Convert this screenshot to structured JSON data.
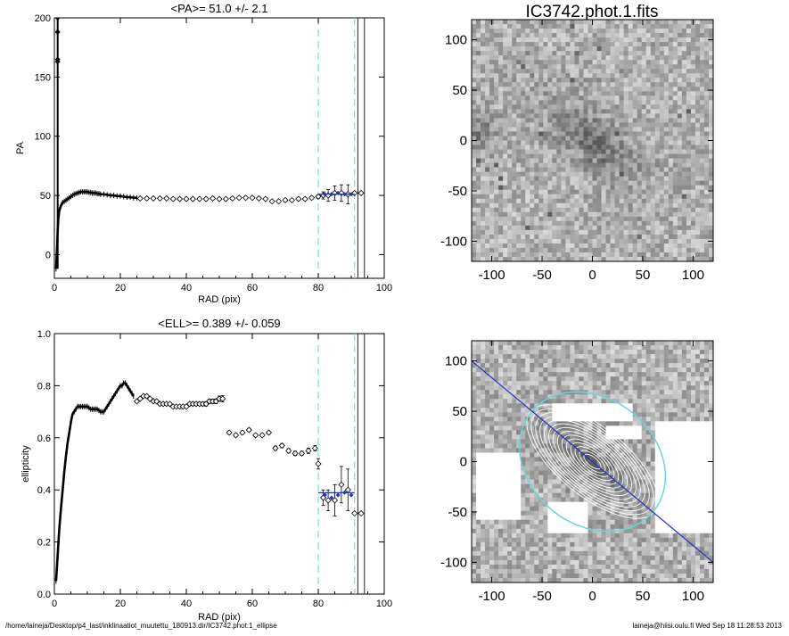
{
  "footer": {
    "path": "/home/laineja/Desktop/p4_last/inklinaatiot_muutettu_180913.dir/IC3742.phot.1_ellipse",
    "user_time": "laineja@hiisi.oulu.fi  Wed Sep 18 11:28:53 2013"
  },
  "colors": {
    "ink": "#000000",
    "fit_line": "#2233bb",
    "dashed_marker": "#7fdcdc",
    "contours": "#ffffff",
    "outer_ellipse": "#66d8d8"
  },
  "chart_data": [
    {
      "id": "pa",
      "type": "scatter",
      "title": "<PA>=  51.0 +/-   2.1",
      "xlabel": "RAD (pix)",
      "ylabel": "PA",
      "xlim": [
        0,
        100
      ],
      "ylim": [
        -20,
        200
      ],
      "xticks": [
        0,
        20,
        40,
        60,
        80,
        100
      ],
      "yticks": [
        0,
        50,
        100,
        150,
        200
      ],
      "vlines_dashed": [
        80,
        91
      ],
      "vlines_solid": [
        92,
        94
      ],
      "mean_line": {
        "x": [
          80,
          91
        ],
        "y": 51.0
      },
      "inner_curve": {
        "x": [
          0.5,
          0.8,
          1.0,
          1.2,
          1.5,
          1.8,
          2.1,
          2.5,
          3.0,
          3.5,
          4.0,
          4.5,
          5.0,
          5.5,
          6.0,
          6.5,
          7.0,
          7.5,
          8.0,
          8.5,
          9.0,
          9.5,
          10.0,
          10.5,
          11.0,
          11.5,
          12.0,
          12.5,
          13.0,
          13.5,
          14.0,
          15.0,
          16.0,
          17.0,
          18.0,
          19.0,
          20.0,
          21.0,
          22.0,
          23.0,
          24.0,
          25.0
        ],
        "y": [
          -12,
          5,
          20,
          30,
          37,
          40,
          42,
          44,
          45,
          46,
          47,
          48,
          49,
          50,
          51,
          51.5,
          52,
          52.5,
          53,
          53,
          53,
          53,
          53,
          52.5,
          52.5,
          52,
          52,
          52,
          51.5,
          51.5,
          51,
          51,
          50.5,
          50,
          50,
          49.5,
          49.5,
          49,
          48.5,
          48.5,
          48,
          48
        ]
      },
      "spike_points": {
        "x": [
          1.0,
          1.0,
          1.0,
          1.0
        ],
        "y": [
          200,
          188,
          165,
          163
        ]
      },
      "points": {
        "x": [
          26,
          28,
          30,
          32,
          34,
          36,
          38,
          40,
          42,
          44,
          46,
          48,
          50,
          52,
          54,
          56,
          58,
          60,
          62,
          64,
          66,
          68,
          70,
          72,
          74,
          76,
          78,
          80
        ],
        "y": [
          47.5,
          47.5,
          47.5,
          47.5,
          47.5,
          47,
          47,
          47,
          47,
          47,
          47,
          47.5,
          47,
          47,
          47.5,
          48,
          48,
          48,
          47.5,
          47,
          45,
          45,
          46,
          46,
          47,
          47,
          48,
          49
        ],
        "err": [
          0.6,
          0.6,
          0.6,
          0.6,
          0.6,
          0.6,
          0.6,
          0.6,
          0.6,
          0.6,
          0.6,
          0.6,
          0.6,
          0.7,
          0.7,
          0.8,
          0.8,
          0.8,
          0.8,
          0.8,
          0.9,
          0.9,
          0.9,
          1.0,
          1.0,
          1.0,
          1.2,
          1.5
        ]
      },
      "outer_points": {
        "x": [
          81.5,
          83,
          85,
          87,
          89,
          91,
          93
        ],
        "y": [
          50,
          50,
          52,
          52,
          51,
          52,
          52
        ],
        "err": [
          3,
          5,
          6,
          7,
          8,
          0,
          0
        ]
      },
      "blue_points": {
        "x": [
          82,
          84,
          86,
          88,
          90
        ],
        "y": [
          51,
          51,
          52,
          51,
          51
        ]
      }
    },
    {
      "id": "ell",
      "type": "scatter",
      "title": "<ELL>= 0.389 +/-  0.059",
      "xlabel": "RAD (pix)",
      "ylabel": "ellipticity",
      "xlim": [
        0,
        100
      ],
      "ylim": [
        0,
        1.0
      ],
      "xticks": [
        0,
        20,
        40,
        60,
        80,
        100
      ],
      "yticks": [
        0.0,
        0.2,
        0.4,
        0.6,
        0.8,
        1.0
      ],
      "vlines_dashed": [
        80,
        91
      ],
      "vlines_solid": [
        92,
        94
      ],
      "mean_line": {
        "x": [
          80,
          91
        ],
        "y": 0.389
      },
      "inner_curve": {
        "x": [
          0.5,
          1.0,
          1.5,
          2.0,
          2.5,
          3.0,
          3.5,
          4.0,
          4.5,
          5.0,
          5.5,
          6.0,
          6.5,
          7.0,
          7.5,
          8.0,
          8.5,
          9.0,
          9.5,
          10.0,
          10.5,
          11.0,
          11.5,
          12.0,
          12.5,
          13.0,
          13.5,
          14.0,
          14.5,
          15.0,
          15.5,
          16.0,
          16.5,
          17.0,
          17.5,
          18.0,
          18.5,
          19.0,
          19.5,
          20.0,
          20.5,
          21.0,
          21.5,
          22.0,
          22.5,
          23.0,
          23.5,
          24.0
        ],
        "y": [
          0.05,
          0.15,
          0.25,
          0.33,
          0.4,
          0.47,
          0.53,
          0.58,
          0.62,
          0.66,
          0.69,
          0.7,
          0.71,
          0.72,
          0.72,
          0.72,
          0.72,
          0.72,
          0.72,
          0.72,
          0.715,
          0.71,
          0.71,
          0.71,
          0.71,
          0.71,
          0.705,
          0.7,
          0.7,
          0.7,
          0.71,
          0.72,
          0.73,
          0.74,
          0.75,
          0.76,
          0.77,
          0.78,
          0.79,
          0.8,
          0.8,
          0.81,
          0.81,
          0.8,
          0.79,
          0.78,
          0.77,
          0.76
        ]
      },
      "points": {
        "x": [
          25,
          26,
          27,
          28,
          29,
          30,
          31,
          32,
          33,
          34,
          35,
          36,
          37,
          38,
          39,
          40,
          41,
          42,
          43,
          44,
          45,
          46,
          47,
          48,
          49,
          50,
          51
        ],
        "y": [
          0.74,
          0.75,
          0.76,
          0.76,
          0.75,
          0.74,
          0.74,
          0.73,
          0.73,
          0.73,
          0.73,
          0.72,
          0.72,
          0.72,
          0.72,
          0.72,
          0.73,
          0.73,
          0.73,
          0.73,
          0.73,
          0.73,
          0.74,
          0.74,
          0.74,
          0.75,
          0.75
        ],
        "err": [
          0.005,
          0.005,
          0.005,
          0.005,
          0.005,
          0.005,
          0.005,
          0.005,
          0.005,
          0.005,
          0.005,
          0.005,
          0.005,
          0.005,
          0.005,
          0.005,
          0.006,
          0.006,
          0.006,
          0.006,
          0.007,
          0.008,
          0.008,
          0.008,
          0.009,
          0.01,
          0.012
        ]
      },
      "mid_points": {
        "x": [
          53,
          55,
          57,
          59,
          61,
          63,
          65,
          67,
          69,
          71,
          73,
          75,
          77,
          79,
          80
        ],
        "y": [
          0.62,
          0.61,
          0.62,
          0.63,
          0.61,
          0.61,
          0.62,
          0.56,
          0.57,
          0.55,
          0.54,
          0.54,
          0.55,
          0.56,
          0.5
        ],
        "err": [
          0.006,
          0.006,
          0.006,
          0.006,
          0.006,
          0.006,
          0.006,
          0.008,
          0.008,
          0.008,
          0.008,
          0.008,
          0.01,
          0.01,
          0.02
        ]
      },
      "outer_points": {
        "x": [
          81.5,
          83,
          85,
          87,
          89,
          91,
          93
        ],
        "y": [
          0.37,
          0.36,
          0.36,
          0.42,
          0.4,
          0.31,
          0.31
        ],
        "err": [
          0.03,
          0.04,
          0.06,
          0.07,
          0.08,
          0.0,
          0.0
        ]
      },
      "blue_points": {
        "x": [
          82,
          84,
          86,
          88,
          90
        ],
        "y": [
          0.38,
          0.37,
          0.38,
          0.39,
          0.38
        ]
      }
    },
    {
      "id": "image",
      "type": "heatmap",
      "title": "IC3742.phot.1.fits",
      "xlim": [
        -120,
        120
      ],
      "ylim": [
        -120,
        120
      ],
      "xticks": [
        -100,
        -50,
        0,
        50,
        100
      ],
      "yticks": [
        -100,
        -50,
        0,
        50,
        100
      ],
      "colormap": "grayscale-inverted"
    },
    {
      "id": "model",
      "type": "heatmap",
      "title": "",
      "xlim": [
        -120,
        120
      ],
      "ylim": [
        -120,
        120
      ],
      "xticks": [
        -100,
        -50,
        0,
        50,
        100
      ],
      "yticks": [
        -100,
        -50,
        0,
        50,
        100
      ],
      "major_axis_line": {
        "x": [
          -120,
          120
        ],
        "y": [
          100,
          -100
        ]
      },
      "outer_ellipse": {
        "center": [
          0,
          0
        ],
        "a": 92,
        "b": 57,
        "pa_deg": 51
      },
      "contours": 14
    }
  ]
}
